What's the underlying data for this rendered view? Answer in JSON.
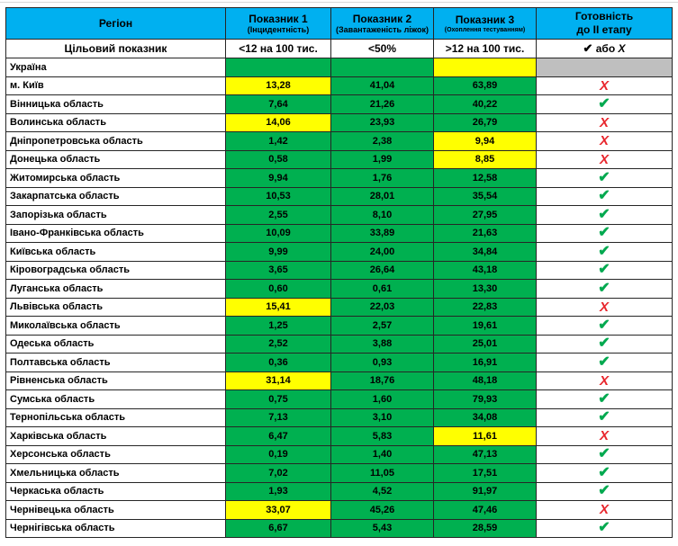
{
  "colors": {
    "header_bg": "#00B0F0",
    "green": "#00B050",
    "yellow": "#FFFF00",
    "gray": "#BFBFBF",
    "check_green": "#00A94F",
    "x_red": "#E8262D",
    "border": "#262626"
  },
  "glyphs": {
    "check": "✔",
    "x": "Х"
  },
  "chart_data": {
    "type": "table",
    "columns": [
      {
        "title": "Регіон",
        "subtitle": ""
      },
      {
        "title": "Показник 1",
        "subtitle": "(Інцидентність)"
      },
      {
        "title": "Показник 2",
        "subtitle": "(Завантаженість ліжок)"
      },
      {
        "title": "Показник 3",
        "subtitle": "(Охоплення тестуванням)"
      },
      {
        "title": "Готовність",
        "subtitle": "до ІІ етапу"
      }
    ],
    "target_row": {
      "label": "Цільовий показник",
      "indicator1": "<12 на 100 тис.",
      "indicator2": "<50%",
      "indicator3": ">12 на 100 тис.",
      "readiness_check": "✔",
      "readiness_conj": "або",
      "readiness_x": "Х"
    },
    "rows": [
      {
        "region": "Україна",
        "values": [
          "",
          "",
          ""
        ],
        "fills": [
          "green",
          "green",
          "yellow"
        ],
        "readiness": "",
        "readiness_fill": "gray"
      },
      {
        "region": "м. Київ",
        "values": [
          "13,28",
          "41,04",
          "63,89"
        ],
        "fills": [
          "yellow",
          "green",
          "green"
        ],
        "readiness": "x",
        "readiness_fill": "white"
      },
      {
        "region": "Вінницька область",
        "values": [
          "7,64",
          "21,26",
          "40,22"
        ],
        "fills": [
          "green",
          "green",
          "green"
        ],
        "readiness": "check",
        "readiness_fill": "white"
      },
      {
        "region": "Волинська область",
        "values": [
          "14,06",
          "23,93",
          "26,79"
        ],
        "fills": [
          "yellow",
          "green",
          "green"
        ],
        "readiness": "x",
        "readiness_fill": "white"
      },
      {
        "region": "Дніпропетровська область",
        "values": [
          "1,42",
          "2,38",
          "9,94"
        ],
        "fills": [
          "green",
          "green",
          "yellow"
        ],
        "readiness": "x",
        "readiness_fill": "white"
      },
      {
        "region": "Донецька область",
        "values": [
          "0,58",
          "1,99",
          "8,85"
        ],
        "fills": [
          "green",
          "green",
          "yellow"
        ],
        "readiness": "x",
        "readiness_fill": "white"
      },
      {
        "region": "Житомирська область",
        "values": [
          "9,94",
          "1,76",
          "12,58"
        ],
        "fills": [
          "green",
          "green",
          "green"
        ],
        "readiness": "check",
        "readiness_fill": "white"
      },
      {
        "region": "Закарпатська область",
        "values": [
          "10,53",
          "28,01",
          "35,54"
        ],
        "fills": [
          "green",
          "green",
          "green"
        ],
        "readiness": "check",
        "readiness_fill": "white"
      },
      {
        "region": "Запорізька область",
        "values": [
          "2,55",
          "8,10",
          "27,95"
        ],
        "fills": [
          "green",
          "green",
          "green"
        ],
        "readiness": "check",
        "readiness_fill": "white"
      },
      {
        "region": "Івано-Франківська область",
        "values": [
          "10,09",
          "33,89",
          "21,63"
        ],
        "fills": [
          "green",
          "green",
          "green"
        ],
        "readiness": "check",
        "readiness_fill": "white"
      },
      {
        "region": "Київська область",
        "values": [
          "9,99",
          "24,00",
          "34,84"
        ],
        "fills": [
          "green",
          "green",
          "green"
        ],
        "readiness": "check",
        "readiness_fill": "white"
      },
      {
        "region": "Кіровоградська область",
        "values": [
          "3,65",
          "26,64",
          "43,18"
        ],
        "fills": [
          "green",
          "green",
          "green"
        ],
        "readiness": "check",
        "readiness_fill": "white"
      },
      {
        "region": "Луганська область",
        "values": [
          "0,60",
          "0,61",
          "13,30"
        ],
        "fills": [
          "green",
          "green",
          "green"
        ],
        "readiness": "check",
        "readiness_fill": "white"
      },
      {
        "region": "Львівська область",
        "values": [
          "15,41",
          "22,03",
          "22,83"
        ],
        "fills": [
          "yellow",
          "green",
          "green"
        ],
        "readiness": "x",
        "readiness_fill": "white"
      },
      {
        "region": "Миколаївська область",
        "values": [
          "1,25",
          "2,57",
          "19,61"
        ],
        "fills": [
          "green",
          "green",
          "green"
        ],
        "readiness": "check",
        "readiness_fill": "white"
      },
      {
        "region": "Одеська область",
        "values": [
          "2,52",
          "3,88",
          "25,01"
        ],
        "fills": [
          "green",
          "green",
          "green"
        ],
        "readiness": "check",
        "readiness_fill": "white"
      },
      {
        "region": "Полтавська область",
        "values": [
          "0,36",
          "0,93",
          "16,91"
        ],
        "fills": [
          "green",
          "green",
          "green"
        ],
        "readiness": "check",
        "readiness_fill": "white"
      },
      {
        "region": "Рівненська область",
        "values": [
          "31,14",
          "18,76",
          "48,18"
        ],
        "fills": [
          "yellow",
          "green",
          "green"
        ],
        "readiness": "x",
        "readiness_fill": "white"
      },
      {
        "region": "Сумська область",
        "values": [
          "0,75",
          "1,60",
          "79,93"
        ],
        "fills": [
          "green",
          "green",
          "green"
        ],
        "readiness": "check",
        "readiness_fill": "white"
      },
      {
        "region": "Тернопільська область",
        "values": [
          "7,13",
          "3,10",
          "34,08"
        ],
        "fills": [
          "green",
          "green",
          "green"
        ],
        "readiness": "check",
        "readiness_fill": "white"
      },
      {
        "region": "Харківська область",
        "values": [
          "6,47",
          "5,83",
          "11,61"
        ],
        "fills": [
          "green",
          "green",
          "yellow"
        ],
        "readiness": "x",
        "readiness_fill": "white"
      },
      {
        "region": "Херсонська область",
        "values": [
          "0,19",
          "1,40",
          "47,13"
        ],
        "fills": [
          "green",
          "green",
          "green"
        ],
        "readiness": "check",
        "readiness_fill": "white"
      },
      {
        "region": "Хмельницька область",
        "values": [
          "7,02",
          "11,05",
          "17,51"
        ],
        "fills": [
          "green",
          "green",
          "green"
        ],
        "readiness": "check",
        "readiness_fill": "white"
      },
      {
        "region": "Черкаська область",
        "values": [
          "1,93",
          "4,52",
          "91,97"
        ],
        "fills": [
          "green",
          "green",
          "green"
        ],
        "readiness": "check",
        "readiness_fill": "white"
      },
      {
        "region": "Чернівецька область",
        "values": [
          "33,07",
          "45,26",
          "47,46"
        ],
        "fills": [
          "yellow",
          "green",
          "green"
        ],
        "readiness": "x",
        "readiness_fill": "white"
      },
      {
        "region": "Чернігівська область",
        "values": [
          "6,67",
          "5,43",
          "28,59"
        ],
        "fills": [
          "green",
          "green",
          "green"
        ],
        "readiness": "check",
        "readiness_fill": "white"
      }
    ]
  }
}
